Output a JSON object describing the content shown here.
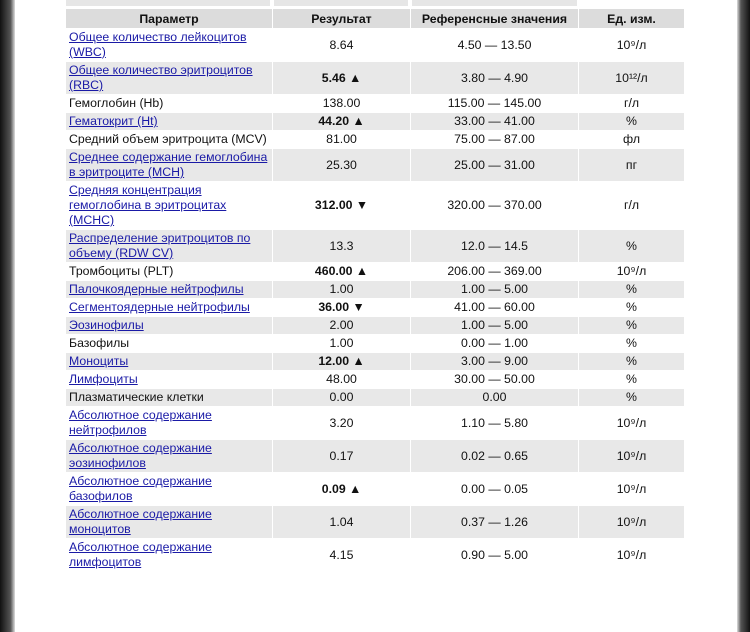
{
  "table": {
    "header": [
      "Параметр",
      "Результат",
      "Референсные значения",
      "Ед. изм."
    ],
    "rows": [
      {
        "param": "Общее количество лейкоцитов (WBC)",
        "link": true,
        "result": "8.64",
        "bold": false,
        "ref": "4.50 — 13.50",
        "unit": "10⁹/л"
      },
      {
        "param": "Общее количество эритроцитов (RBC)",
        "link": true,
        "result": "5.46 ▲",
        "bold": true,
        "ref": "3.80 — 4.90",
        "unit": "10¹²/л"
      },
      {
        "param": "Гемоглобин (Hb)",
        "link": false,
        "result": "138.00",
        "bold": false,
        "ref": "115.00 — 145.00",
        "unit": "г/л"
      },
      {
        "param": "Гематокрит (Ht)",
        "link": true,
        "result": "44.20 ▲",
        "bold": true,
        "ref": "33.00 — 41.00",
        "unit": "%"
      },
      {
        "param": "Средний объем эритроцита (MCV)",
        "link": false,
        "result": "81.00",
        "bold": false,
        "ref": "75.00 — 87.00",
        "unit": "фл"
      },
      {
        "param": "Среднее содержание гемоглобина в эритроците (MCH)",
        "link": true,
        "result": "25.30",
        "bold": false,
        "ref": "25.00 — 31.00",
        "unit": "пг"
      },
      {
        "param": "Средняя концентрация гемоглобина в эритроцитах (MCHC)",
        "link": true,
        "result": "312.00 ▼",
        "bold": true,
        "ref": "320.00 — 370.00",
        "unit": "г/л"
      },
      {
        "param": "Распределение эритроцитов по объему (RDW CV)",
        "link": true,
        "result": "13.3",
        "bold": false,
        "ref": "12.0 — 14.5",
        "unit": "%"
      },
      {
        "param": "Тромбоциты (PLT)",
        "link": false,
        "result": "460.00 ▲",
        "bold": true,
        "ref": "206.00 — 369.00",
        "unit": "10⁹/л"
      },
      {
        "param": "Палочкоядерные нейтрофилы",
        "link": true,
        "result": "1.00",
        "bold": false,
        "ref": "1.00 — 5.00",
        "unit": "%"
      },
      {
        "param": "Сегментоядерные нейтрофилы",
        "link": true,
        "result": "36.00 ▼",
        "bold": true,
        "ref": "41.00 — 60.00",
        "unit": "%"
      },
      {
        "param": "Эозинофилы",
        "link": true,
        "result": "2.00",
        "bold": false,
        "ref": "1.00 — 5.00",
        "unit": "%"
      },
      {
        "param": "Базофилы",
        "link": false,
        "result": "1.00",
        "bold": false,
        "ref": "0.00 — 1.00",
        "unit": "%"
      },
      {
        "param": "Моноциты",
        "link": true,
        "result": "12.00 ▲",
        "bold": true,
        "ref": "3.00 — 9.00",
        "unit": "%"
      },
      {
        "param": "Лимфоциты",
        "link": true,
        "result": "48.00",
        "bold": false,
        "ref": "30.00 — 50.00",
        "unit": "%"
      },
      {
        "param": "Плазматические клетки",
        "link": false,
        "result": "0.00",
        "bold": false,
        "ref": "0.00",
        "unit": "%"
      },
      {
        "param": "Абсолютное содержание нейтрофилов",
        "link": true,
        "result": "3.20",
        "bold": false,
        "ref": "1.10 — 5.80",
        "unit": "10⁹/л"
      },
      {
        "param": "Абсолютное содержание эозинофилов",
        "link": true,
        "result": "0.17",
        "bold": false,
        "ref": "0.02 — 0.65",
        "unit": "10⁹/л"
      },
      {
        "param": "Абсолютное содержание базофилов",
        "link": true,
        "result": "0.09 ▲",
        "bold": true,
        "ref": "0.00 — 0.05",
        "unit": "10⁹/л"
      },
      {
        "param": "Абсолютное содержание моноцитов",
        "link": true,
        "result": "1.04",
        "bold": false,
        "ref": "0.37 — 1.26",
        "unit": "10⁹/л"
      },
      {
        "param": "Абсолютное содержание лимфоцитов",
        "link": true,
        "result": "4.15",
        "bold": false,
        "ref": "0.90 — 5.00",
        "unit": "10⁹/л"
      }
    ]
  }
}
